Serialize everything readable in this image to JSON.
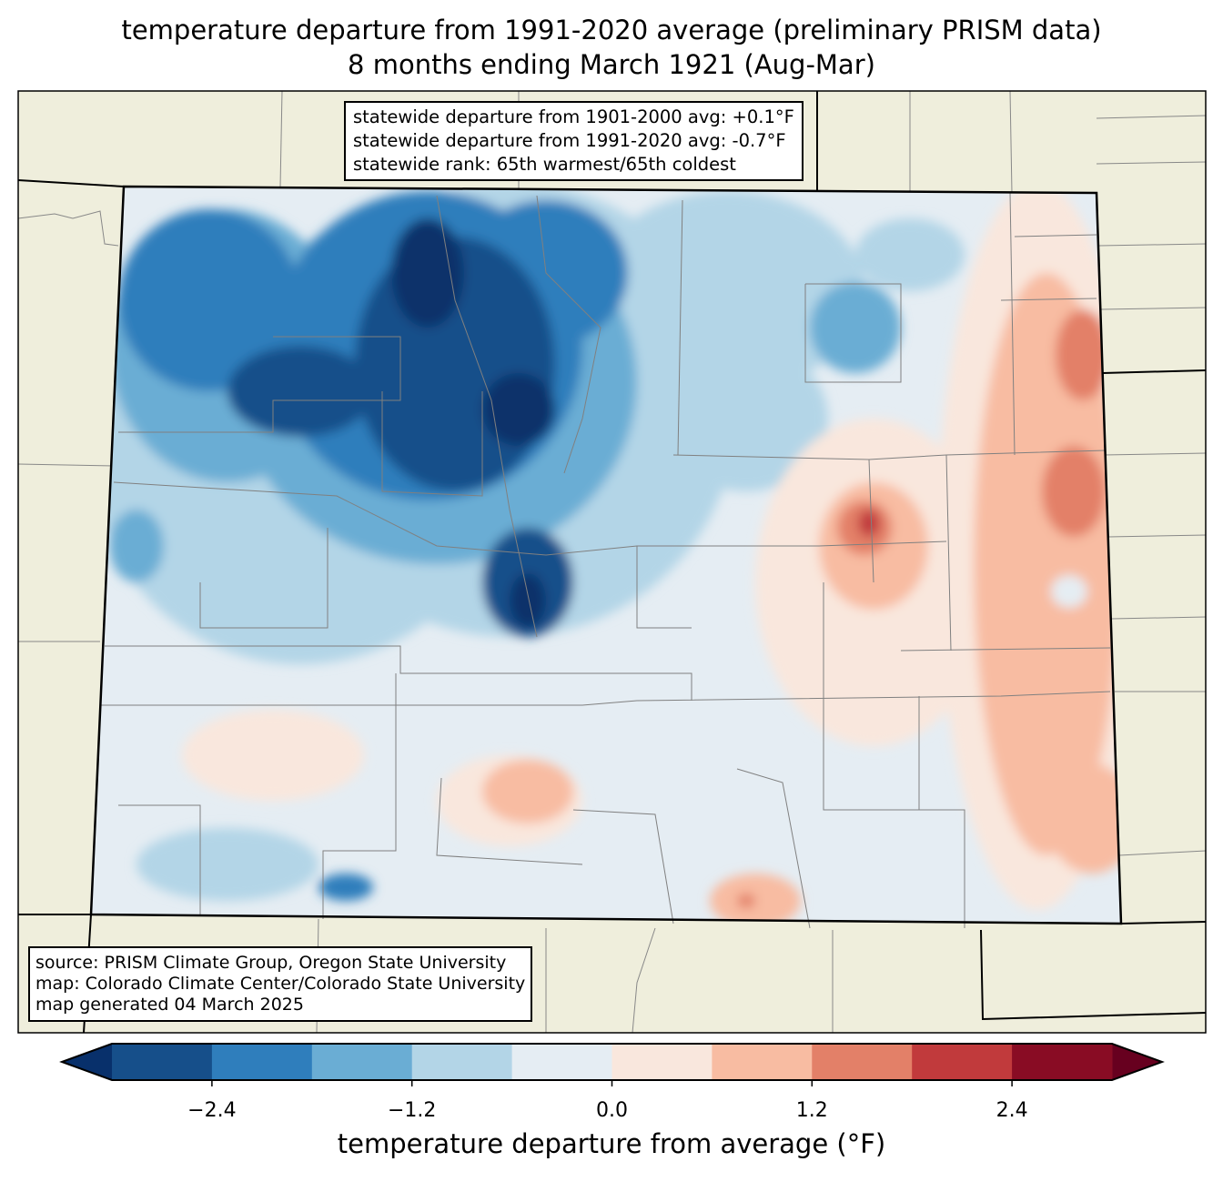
{
  "title": {
    "line1": "temperature departure from 1991-2020 average (preliminary PRISM data)",
    "line2": "8 months ending March 1921 (Aug-Mar)"
  },
  "stats_box": {
    "line1": "statewide departure from 1901-2000 avg: +0.1°F",
    "line2": "statewide departure from 1991-2020 avg: -0.7°F",
    "line3": "statewide rank: 65th warmest/65th coldest"
  },
  "source_box": {
    "line1": "source: PRISM Climate Group, Oregon State University",
    "line2": "map: Colorado Climate Center/Colorado State University",
    "line3": "map generated 04 March 2025"
  },
  "colorbar": {
    "label": "temperature departure from average (°F)",
    "levels": [
      -3.0,
      -2.4,
      -1.8,
      -1.2,
      -0.6,
      0.0,
      0.6,
      1.2,
      1.8,
      2.4,
      3.0
    ],
    "colors": [
      "#164f8a",
      "#2f7ebc",
      "#6aadd4",
      "#b3d5e7",
      "#e5edf3",
      "#f9e7dd",
      "#f8bca2",
      "#e38068",
      "#c13a3c",
      "#890c24"
    ],
    "extend_low_color": "#08306b",
    "extend_high_color": "#67001f",
    "ticks": [
      "−2.4",
      "−1.2",
      "0.0",
      "1.2",
      "2.4"
    ]
  },
  "colors": {
    "land": "#efeedc",
    "state_border": "#000000",
    "county_border": "#808080"
  }
}
